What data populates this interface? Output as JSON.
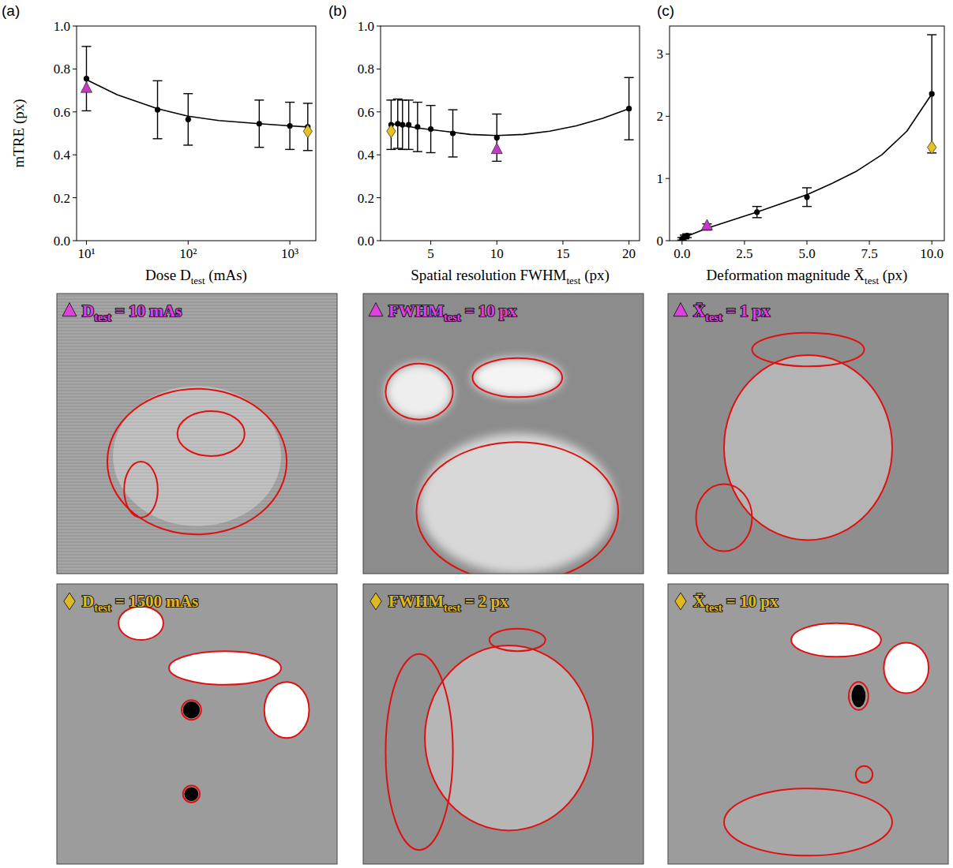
{
  "chart_data": [
    {
      "type": "line",
      "panel_label": "(a)",
      "log": "x",
      "x_label": {
        "before": "Dose ",
        "symbol": "D",
        "sub": "test",
        "after": " (mAs)"
      },
      "y_label": "mTRE (px)",
      "xlim": [
        8,
        1800
      ],
      "xticks": [
        {
          "value": 10,
          "label": "10¹"
        },
        {
          "value": 100,
          "label": "10²"
        },
        {
          "value": 1000,
          "label": "10³"
        }
      ],
      "ylim": [
        0,
        1
      ],
      "yticks": [
        {
          "value": 0,
          "label": "0.0"
        },
        0.2,
        0.4,
        0.6,
        0.8,
        {
          "value": 1,
          "label": "1.0"
        }
      ],
      "series": [
        {
          "type": "scatter",
          "marker": "circle",
          "color": "#000000",
          "x": [
            10,
            50,
            100,
            500,
            1000,
            1500
          ],
          "values": [
            0.755,
            0.61,
            0.565,
            0.545,
            0.535,
            0.53
          ],
          "error": [
            0.15,
            0.135,
            0.12,
            0.11,
            0.11,
            0.11
          ]
        },
        {
          "type": "line",
          "color": "#000000",
          "x": [
            10,
            20,
            50,
            100,
            200,
            500,
            1000,
            1500
          ],
          "values": [
            0.75,
            0.68,
            0.615,
            0.58,
            0.56,
            0.545,
            0.535,
            0.53
          ]
        },
        {
          "type": "scatter",
          "marker": "triangle",
          "color": "#c838c8",
          "x": [
            10
          ],
          "values": [
            0.71
          ]
        },
        {
          "type": "scatter",
          "marker": "diamond",
          "color": "#e8c020",
          "x": [
            1500
          ],
          "values": [
            0.51
          ]
        }
      ]
    },
    {
      "type": "line",
      "panel_label": "(b)",
      "x_label": {
        "before": "Spatial resolution ",
        "symbol": "FWHM",
        "sub": "test",
        "after": " (px)"
      },
      "xlim": [
        1.2,
        20.8
      ],
      "xticks": [
        5,
        10,
        15,
        20
      ],
      "ylim": [
        0,
        1
      ],
      "yticks": [
        {
          "value": 0,
          "label": "0.0"
        },
        0.2,
        0.4,
        0.6,
        0.8,
        {
          "value": 1,
          "label": "1.0"
        }
      ],
      "series": [
        {
          "type": "scatter",
          "marker": "circle",
          "color": "#000000",
          "x": [
            2,
            2.5,
            2.86,
            3.33,
            4,
            5,
            6.67,
            10,
            20
          ],
          "values": [
            0.54,
            0.545,
            0.54,
            0.54,
            0.53,
            0.52,
            0.5,
            0.48,
            0.615
          ],
          "error": [
            0.115,
            0.115,
            0.115,
            0.115,
            0.115,
            0.11,
            0.11,
            0.11,
            0.145
          ]
        },
        {
          "type": "line",
          "color": "#000000",
          "x": [
            2,
            4,
            6,
            8,
            10,
            12,
            14,
            16,
            18,
            20
          ],
          "values": [
            0.545,
            0.525,
            0.51,
            0.495,
            0.49,
            0.495,
            0.51,
            0.535,
            0.57,
            0.615
          ]
        },
        {
          "type": "scatter",
          "marker": "triangle",
          "color": "#c838c8",
          "x": [
            10
          ],
          "values": [
            0.425
          ]
        },
        {
          "type": "scatter",
          "marker": "diamond",
          "color": "#e8c020",
          "x": [
            2
          ],
          "values": [
            0.51
          ]
        }
      ]
    },
    {
      "type": "line",
      "panel_label": "(c)",
      "x_label": {
        "before": "Deformation magnitude ",
        "symbol": "X̄",
        "sub": "test",
        "after": " (px)"
      },
      "xlim": [
        -0.5,
        10.5
      ],
      "xticks": [
        {
          "value": 0,
          "label": "0.0"
        },
        2.5,
        {
          "value": 5,
          "label": "5.0"
        },
        7.5,
        {
          "value": 10,
          "label": "10.0"
        }
      ],
      "ylim": [
        0,
        3.45
      ],
      "yticks": [
        0,
        1,
        2,
        3
      ],
      "series": [
        {
          "type": "scatter",
          "marker": "circle",
          "color": "#000000",
          "x": [
            0,
            0.1,
            0.2,
            1,
            3,
            5,
            10
          ],
          "values": [
            0.03,
            0.06,
            0.08,
            0.22,
            0.46,
            0.7,
            2.36
          ],
          "error": [
            0.02,
            0.03,
            0.03,
            0.05,
            0.09,
            0.15,
            0.95
          ]
        },
        {
          "type": "line",
          "color": "#000000",
          "x": [
            0,
            1,
            2,
            3,
            4,
            5,
            6,
            7,
            8,
            9,
            10
          ],
          "values": [
            0.04,
            0.2,
            0.33,
            0.46,
            0.6,
            0.74,
            0.92,
            1.12,
            1.38,
            1.76,
            2.36
          ]
        },
        {
          "type": "scatter",
          "marker": "triangle",
          "color": "#c838c8",
          "x": [
            1
          ],
          "values": [
            0.24
          ]
        },
        {
          "type": "scatter",
          "marker": "diamond",
          "color": "#e8c020",
          "x": [
            10
          ],
          "values": [
            1.5
          ]
        }
      ]
    }
  ],
  "images": [
    {
      "marker": "triangle",
      "color": "#e040e0",
      "label": {
        "symbol": "D",
        "sub": "test",
        "after": " = 10 mAs"
      }
    },
    {
      "marker": "triangle",
      "color": "#e040e0",
      "label": {
        "symbol": "FWHM",
        "sub": "test",
        "after": " = 10 px"
      }
    },
    {
      "marker": "triangle",
      "color": "#e040e0",
      "label": {
        "symbol": "X̄",
        "sub": "test",
        "after": " = 1 px"
      }
    },
    {
      "marker": "diamond",
      "color": "#e0b820",
      "label": {
        "symbol": "D",
        "sub": "test",
        "after": " = 1500 mAs"
      }
    },
    {
      "marker": "diamond",
      "color": "#e0b820",
      "label": {
        "symbol": "FWHM",
        "sub": "test",
        "after": " = 2 px"
      }
    },
    {
      "marker": "diamond",
      "color": "#e0b820",
      "label": {
        "symbol": "X̄",
        "sub": "test",
        "after": " = 10 px"
      }
    }
  ]
}
